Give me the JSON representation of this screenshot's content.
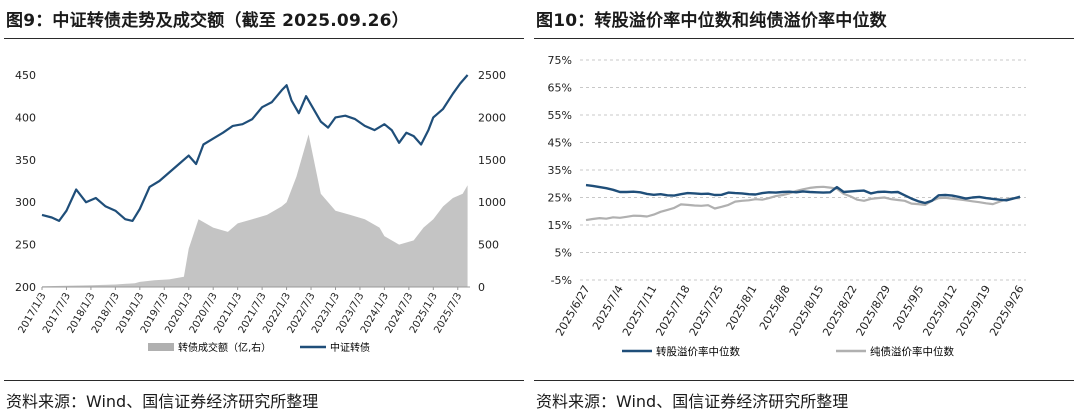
{
  "left": {
    "title": "图9：中证转债走势及成交额（截至 2025.09.26）",
    "source": "资料来源：Wind、国信证券经济研究所整理"
  },
  "right": {
    "title": "图10：转股溢价率中位数和纯债溢价率中位数",
    "source": "资料来源：Wind、国信证券经济研究所整理"
  },
  "colors": {
    "navy": "#1f4e79",
    "gray": "#b0b0b0"
  },
  "chart_data": [
    {
      "type": "line",
      "series": [
        {
          "name": "中证转债",
          "axis": "left",
          "color": "#1f4e79",
          "x": [
            2017.0,
            2017.2,
            2017.35,
            2017.5,
            2017.7,
            2017.9,
            2018.1,
            2018.3,
            2018.5,
            2018.7,
            2018.85,
            2019.0,
            2019.2,
            2019.4,
            2019.6,
            2019.8,
            2020.0,
            2020.15,
            2020.3,
            2020.5,
            2020.7,
            2020.9,
            2021.1,
            2021.3,
            2021.5,
            2021.7,
            2021.9,
            2022.0,
            2022.1,
            2022.25,
            2022.4,
            2022.55,
            2022.7,
            2022.85,
            2023.0,
            2023.2,
            2023.4,
            2023.6,
            2023.8,
            2024.0,
            2024.15,
            2024.3,
            2024.45,
            2024.6,
            2024.75,
            2024.9,
            2025.0,
            2025.2,
            2025.4,
            2025.55,
            2025.7
          ],
          "y": [
            285,
            282,
            278,
            290,
            315,
            300,
            305,
            295,
            290,
            280,
            278,
            292,
            318,
            325,
            335,
            345,
            355,
            345,
            368,
            375,
            382,
            390,
            392,
            398,
            412,
            418,
            432,
            438,
            420,
            405,
            425,
            410,
            395,
            388,
            400,
            402,
            398,
            390,
            385,
            392,
            385,
            370,
            382,
            378,
            368,
            385,
            400,
            410,
            428,
            440,
            450
          ]
        },
        {
          "name": "转债成交额（亿,右）",
          "axis": "right",
          "type": "area",
          "color": "#b0b0b0",
          "x": [
            2017.0,
            2017.5,
            2018.0,
            2018.5,
            2018.9,
            2019.0,
            2019.3,
            2019.6,
            2019.9,
            2020.0,
            2020.2,
            2020.5,
            2020.8,
            2021.0,
            2021.3,
            2021.6,
            2021.9,
            2022.0,
            2022.2,
            2022.45,
            2022.7,
            2023.0,
            2023.3,
            2023.6,
            2023.9,
            2024.0,
            2024.3,
            2024.6,
            2024.8,
            2025.0,
            2025.2,
            2025.4,
            2025.6,
            2025.7
          ],
          "y": [
            10,
            15,
            20,
            30,
            45,
            60,
            80,
            90,
            120,
            450,
            800,
            700,
            650,
            750,
            800,
            850,
            950,
            1000,
            1300,
            1800,
            1100,
            900,
            850,
            800,
            700,
            600,
            500,
            550,
            700,
            800,
            950,
            1050,
            1100,
            1200
          ]
        }
      ],
      "x_ticks": [
        "2017/1/3",
        "2017/7/3",
        "2018/1/3",
        "2018/7/3",
        "2019/1/3",
        "2019/7/3",
        "2020/1/3",
        "2020/7/3",
        "2021/1/3",
        "2021/7/3",
        "2022/1/3",
        "2022/7/3",
        "2023/1/3",
        "2023/7/3",
        "2024/1/3",
        "2024/7/3",
        "2025/1/3",
        "2025/7/3"
      ],
      "x_range": [
        2017.0,
        2025.75
      ],
      "y_left_ticks": [
        "200",
        "250",
        "300",
        "350",
        "400",
        "450"
      ],
      "y_left_range": [
        200,
        450
      ],
      "y_right_ticks": [
        "0",
        "500",
        "1000",
        "1500",
        "2000",
        "2500"
      ],
      "y_right_range": [
        0,
        2500
      ],
      "legend": [
        "转债成交额（亿,右）",
        "中证转债"
      ],
      "legend_position": "bottom",
      "grid": false
    },
    {
      "type": "line",
      "series": [
        {
          "name": "转股溢价率中位数",
          "color": "#1f4e79",
          "x": [
            0,
            1,
            2,
            3,
            4,
            5,
            6,
            7,
            8,
            9,
            10,
            11,
            12,
            13,
            14,
            15,
            16,
            17,
            18,
            19,
            20,
            21,
            22,
            23,
            24,
            25,
            26,
            27,
            28,
            29,
            30,
            31,
            32,
            33,
            34,
            35,
            36,
            37,
            38,
            39,
            40,
            41,
            42,
            43,
            44,
            45,
            46,
            47,
            48,
            49,
            50,
            51,
            52,
            53,
            54,
            55,
            56,
            57,
            58,
            59,
            60,
            61,
            62,
            63,
            64
          ],
          "y": [
            29.5,
            29.2,
            28.8,
            28.4,
            27.8,
            27.0,
            27.0,
            27.1,
            26.9,
            26.3,
            26.0,
            26.2,
            25.8,
            25.7,
            26.2,
            26.6,
            26.5,
            26.3,
            26.4,
            25.9,
            26.0,
            26.8,
            26.6,
            26.5,
            26.2,
            26.1,
            26.6,
            26.9,
            26.8,
            27.0,
            27.1,
            26.9,
            27.2,
            27.0,
            26.9,
            26.8,
            26.9,
            28.8,
            27.0,
            27.2,
            27.4,
            27.5,
            26.5,
            27.0,
            27.1,
            26.9,
            27.0,
            25.8,
            24.6,
            23.6,
            23.0,
            23.8,
            25.8,
            25.9,
            25.7,
            25.2,
            24.6,
            25.0,
            25.2,
            24.8,
            24.5,
            24.2,
            24.0,
            24.6,
            25.3
          ],
          "note": "x index spans 2025/6/27–2025/9/26"
        },
        {
          "name": "纯债溢价率中位数",
          "color": "#b0b0b0",
          "x": [
            0,
            1,
            2,
            3,
            4,
            5,
            6,
            7,
            8,
            9,
            10,
            11,
            12,
            13,
            14,
            15,
            16,
            17,
            18,
            19,
            20,
            21,
            22,
            23,
            24,
            25,
            26,
            27,
            28,
            29,
            30,
            31,
            32,
            33,
            34,
            35,
            36,
            37,
            38,
            39,
            40,
            41,
            42,
            43,
            44,
            45,
            46,
            47,
            48,
            49,
            50,
            51,
            52,
            53,
            54,
            55,
            56,
            57,
            58,
            59,
            60,
            61,
            62,
            63,
            64
          ],
          "y": [
            16.8,
            17.2,
            17.5,
            17.3,
            17.8,
            17.6,
            18.0,
            18.4,
            18.3,
            18.1,
            18.8,
            19.8,
            20.5,
            21.2,
            22.5,
            22.3,
            22.1,
            22.0,
            22.2,
            21.0,
            21.6,
            22.3,
            23.5,
            23.8,
            24.0,
            24.4,
            24.2,
            24.8,
            25.5,
            25.9,
            26.5,
            27.4,
            28.0,
            28.5,
            28.8,
            28.9,
            28.6,
            28.2,
            26.3,
            25.4,
            24.2,
            23.8,
            24.5,
            24.8,
            25.0,
            24.4,
            24.1,
            23.8,
            22.8,
            22.6,
            22.3,
            23.8,
            24.8,
            24.9,
            24.6,
            24.3,
            24.0,
            23.6,
            23.3,
            22.9,
            22.6,
            23.5,
            24.4,
            24.8,
            24.8
          ]
        }
      ],
      "x_ticks": [
        "2025/6/27",
        "2025/7/4",
        "2025/7/11",
        "2025/7/18",
        "2025/7/25",
        "2025/8/1",
        "2025/8/8",
        "2025/8/15",
        "2025/8/22",
        "2025/8/29",
        "2025/9/5",
        "2025/9/12",
        "2025/9/19",
        "2025/9/26"
      ],
      "y_ticks": [
        "-5%",
        "5%",
        "15%",
        "25%",
        "35%",
        "45%",
        "55%",
        "65%",
        "75%"
      ],
      "y_range": [
        -5,
        75
      ],
      "legend": [
        "转股溢价率中位数",
        "纯债溢价率中位数"
      ],
      "legend_position": "bottom",
      "grid": true
    }
  ]
}
